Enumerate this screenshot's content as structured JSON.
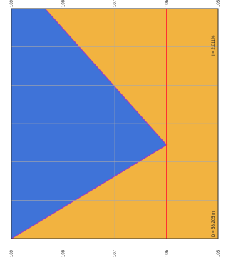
{
  "chart_data": {
    "type": "area",
    "title": "",
    "xlabel": "",
    "ylabel": "",
    "orientation": "rotated-90-clockwise",
    "x": [
      0,
      58.205
    ],
    "xlim": [
      0,
      58.205
    ],
    "ylim": [
      105,
      109
    ],
    "ticks": [
      "105",
      "106",
      "107",
      "108",
      "109"
    ],
    "ticks_y": [
      105,
      106,
      107,
      108,
      109
    ],
    "series": [
      {
        "role": "terrain",
        "points": [
          [
            0,
            108.35
          ],
          [
            34.5,
            106.0
          ],
          [
            58.205,
            109.0
          ]
        ]
      },
      {
        "role": "level-line",
        "y": 106.0
      }
    ],
    "grid": true,
    "annotations": {
      "distance": "D = 58,205 m",
      "slope": "I = 2,011%"
    },
    "colors": {
      "background_fill": "#f2b340",
      "terrain_fill": "#3f73d8",
      "terrain_edge": "#9a3fc0",
      "level_line": "#ff3030",
      "grid": "#a9a9a9",
      "frame": "#333333"
    }
  }
}
